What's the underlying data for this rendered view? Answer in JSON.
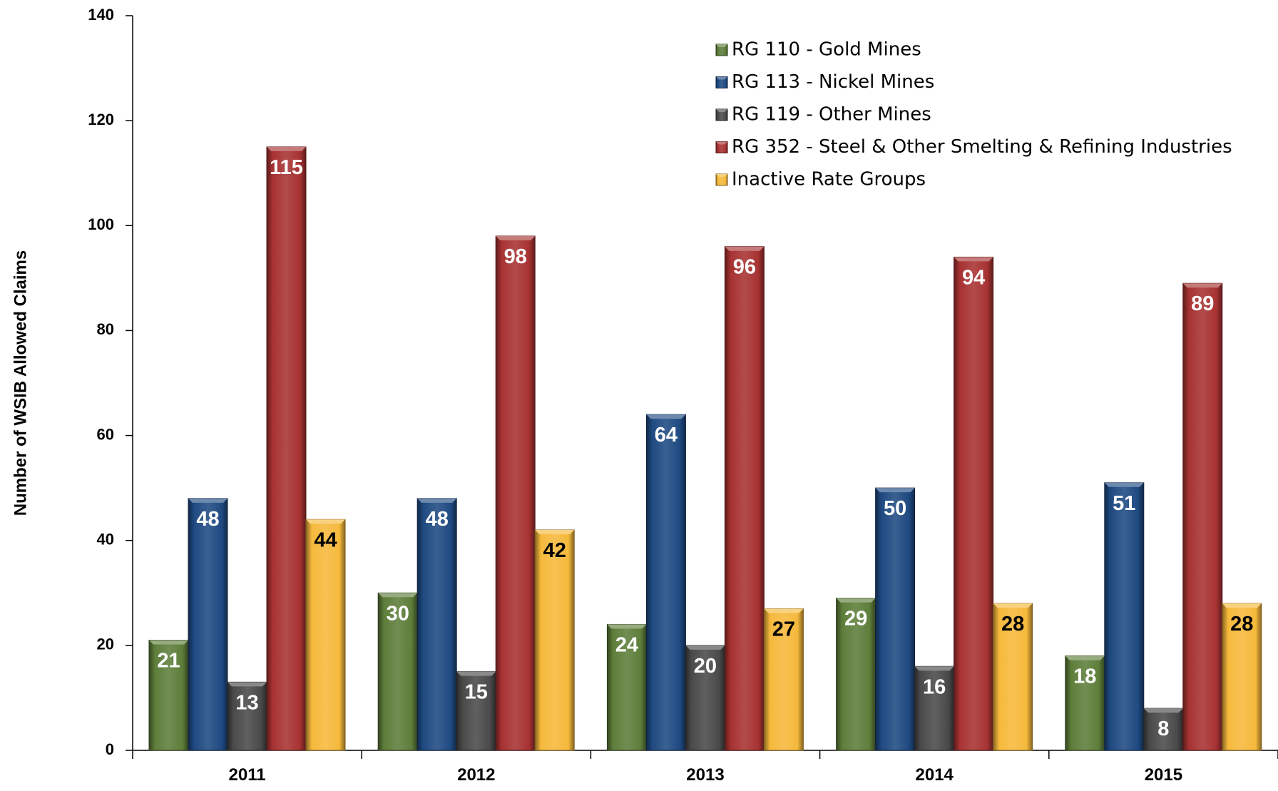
{
  "chart_data": {
    "type": "bar",
    "title": "",
    "xlabel": "",
    "ylabel": "Number of WSIB Allowed Claims",
    "ylim": [
      0,
      140
    ],
    "yticks": [
      0,
      20,
      40,
      60,
      80,
      100,
      120,
      140
    ],
    "categories": [
      "2011",
      "2012",
      "2013",
      "2014",
      "2015"
    ],
    "legend_position": "top-right",
    "grid": false,
    "series": [
      {
        "name": "RG 110 - Gold Mines",
        "color": "#5e7e3a",
        "label_color": "#ffffff",
        "values": [
          21,
          30,
          24,
          29,
          18
        ]
      },
      {
        "name": "RG 113 - Nickel Mines",
        "color": "#1f4a82",
        "label_color": "#ffffff",
        "values": [
          48,
          48,
          64,
          50,
          51
        ]
      },
      {
        "name": "RG 119 - Other Mines",
        "color": "#4a4a4a",
        "label_color": "#ffffff",
        "values": [
          13,
          15,
          20,
          16,
          8
        ]
      },
      {
        "name": "RG 352 - Steel & Other Smelting & Refining Industries",
        "color": "#a83232",
        "label_color": "#ffffff",
        "values": [
          115,
          98,
          96,
          94,
          89
        ]
      },
      {
        "name": "Inactive Rate Groups",
        "color": "#f6b93b",
        "label_color": "#000000",
        "values": [
          44,
          42,
          27,
          28,
          28
        ]
      }
    ]
  }
}
